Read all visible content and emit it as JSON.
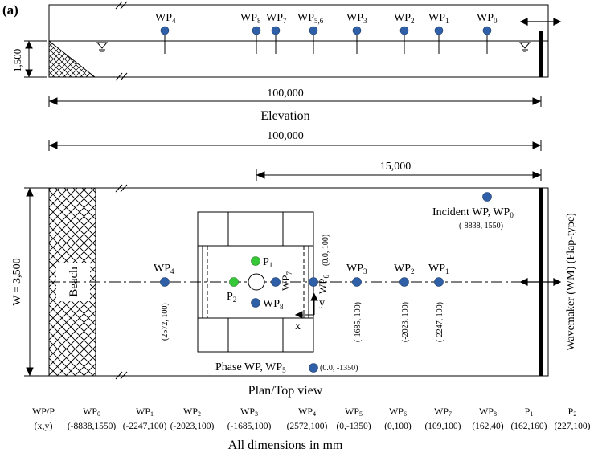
{
  "panel_label": "(a)",
  "colors": {
    "wave_probe": "#2f5fa6",
    "pressure_sensor": "#37c837",
    "line": "#000000",
    "fill": "#ffffff"
  },
  "elevation": {
    "depth_label": "1,500",
    "length_label": "100,000",
    "view_label": "Elevation",
    "probes": [
      {
        "base": "WP",
        "sub": "4"
      },
      {
        "base": "WP",
        "sub": "8"
      },
      {
        "base": "WP",
        "sub": "7"
      },
      {
        "base": "WP",
        "sub": "5,6"
      },
      {
        "base": "WP",
        "sub": "3"
      },
      {
        "base": "WP",
        "sub": "2"
      },
      {
        "base": "WP",
        "sub": "1"
      },
      {
        "base": "WP",
        "sub": "0"
      }
    ]
  },
  "plan": {
    "total_length_label": "100,000",
    "partial_length_label": "15,000",
    "width_label": "W = 3,500",
    "beach_label": "Beach",
    "wavemaker_label": "Wavemaker (WM) (Flap-type)",
    "incident_label": {
      "base": "Incident WP, WP",
      "sub": "0"
    },
    "incident_coords": "(-8838, 1550)",
    "phase_label": {
      "base": "Phase WP, WP",
      "sub": "5"
    },
    "phase_coords": "(0.0, -1350)",
    "view_label": "Plan/Top view",
    "axis_x": "x",
    "axis_y": "y",
    "line_probes": [
      {
        "base": "WP",
        "sub": "4",
        "coords": "(2572, 100)"
      },
      {
        "base": "WP",
        "sub": "3",
        "coords": "(-1685, 100)"
      },
      {
        "base": "WP",
        "sub": "2",
        "coords": "(-2023, 100)"
      },
      {
        "base": "WP",
        "sub": "1",
        "coords": "(-2247, 100)"
      }
    ],
    "model_probes": [
      {
        "base": "WP",
        "sub": "8"
      },
      {
        "base": "WP",
        "sub": "7"
      },
      {
        "base": "WP",
        "sub": "6",
        "coords": "(0.0, 100)"
      }
    ],
    "sensors": [
      {
        "base": "P",
        "sub": "1"
      },
      {
        "base": "P",
        "sub": "2"
      }
    ]
  },
  "table": {
    "header_label": "WP/P",
    "coord_label": "(x,y)",
    "columns": [
      {
        "base": "WP",
        "sub": "0",
        "xy": "(-8838,1550)"
      },
      {
        "base": "WP",
        "sub": "1",
        "xy": "(-2247,100)"
      },
      {
        "base": "WP",
        "sub": "2",
        "xy": "(-2023,100)"
      },
      {
        "base": "WP",
        "sub": "3",
        "xy": "(-1685,100)"
      },
      {
        "base": "WP",
        "sub": "4",
        "xy": "(2572,100)"
      },
      {
        "base": "WP",
        "sub": "5",
        "xy": "(0,-1350)"
      },
      {
        "base": "WP",
        "sub": "6",
        "xy": "(0,100)"
      },
      {
        "base": "WP",
        "sub": "7",
        "xy": "(109,100)"
      },
      {
        "base": "WP",
        "sub": "8",
        "xy": "(162,40)"
      },
      {
        "base": "P",
        "sub": "1",
        "xy": "(162,160)"
      },
      {
        "base": "P",
        "sub": "2",
        "xy": "(227,100)"
      }
    ]
  },
  "footnote": "All dimensions in mm"
}
